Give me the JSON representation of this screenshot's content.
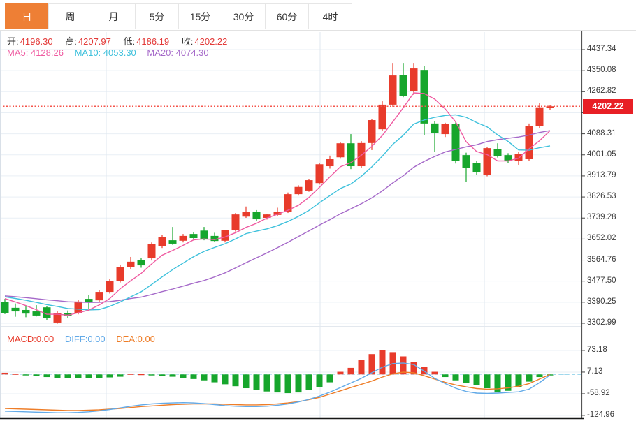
{
  "tabs": {
    "items": [
      {
        "label": "日",
        "selected": true
      },
      {
        "label": "周",
        "selected": false
      },
      {
        "label": "月",
        "selected": false
      },
      {
        "label": "5分",
        "selected": false
      },
      {
        "label": "15分",
        "selected": false
      },
      {
        "label": "30分",
        "selected": false
      },
      {
        "label": "60分",
        "selected": false
      },
      {
        "label": "4时",
        "selected": false
      }
    ]
  },
  "ohlc": {
    "open_label": "开:",
    "open": "4196.30",
    "high_label": "高:",
    "high": "4207.97",
    "low_label": "低:",
    "low": "4186.19",
    "close_label": "收:",
    "close": "4202.22"
  },
  "ma": {
    "ma5_label": "MA5:",
    "ma5": "4128.26",
    "ma10_label": "MA10:",
    "ma10": "4053.30",
    "ma20_label": "MA20:",
    "ma20": "4074.30"
  },
  "macd_info": {
    "macd_label": "MACD:",
    "macd": "0.00",
    "diff_label": "DIFF:",
    "diff": "0.00",
    "dea_label": "DEA:",
    "dea": "0.00"
  },
  "colors": {
    "up": "#e83b2b",
    "down": "#16a62c",
    "ma5": "#ef5ba1",
    "ma10": "#3ec1dc",
    "ma20": "#a569c9",
    "diff": "#62aae8",
    "dea": "#ee7d28",
    "current_line": "#f4554b",
    "badge": "#e81f25",
    "tab_active": "#ee7f35",
    "grid": "#e9eff5",
    "vgrid": "#dfe7ef",
    "value_red": "#e33a38"
  },
  "chart_data": {
    "type": "candlestick+macd",
    "title": "",
    "current_price": "4202.22",
    "price_axis": {
      "labels": [
        "4437.34",
        "4350.08",
        "4262.82",
        "4175.56",
        "4088.31",
        "4001.05",
        "3913.79",
        "3826.53",
        "3739.28",
        "3652.02",
        "3564.76",
        "3477.50",
        "3390.25",
        "3302.99"
      ],
      "max": 4437.34,
      "step": 87.26
    },
    "macd_axis": {
      "labels": [
        "73.18",
        "7.13",
        "-58.92",
        "-124.96"
      ],
      "max": 73.18,
      "step": 66.05
    },
    "ohlc_series": [
      [
        3390,
        3404,
        3341,
        3346
      ],
      [
        3367,
        3385,
        3330,
        3352
      ],
      [
        3358,
        3375,
        3328,
        3343
      ],
      [
        3352,
        3378,
        3331,
        3335
      ],
      [
        3369,
        3375,
        3316,
        3326
      ],
      [
        3306,
        3352,
        3301,
        3346
      ],
      [
        3346,
        3356,
        3325,
        3332
      ],
      [
        3346,
        3400,
        3340,
        3393
      ],
      [
        3404,
        3419,
        3361,
        3390
      ],
      [
        3398,
        3440,
        3390,
        3433
      ],
      [
        3433,
        3487,
        3426,
        3479
      ],
      [
        3479,
        3544,
        3472,
        3535
      ],
      [
        3535,
        3578,
        3528,
        3558
      ],
      [
        3566,
        3572,
        3533,
        3543
      ],
      [
        3572,
        3638,
        3563,
        3630
      ],
      [
        3624,
        3668,
        3615,
        3659
      ],
      [
        3647,
        3702,
        3628,
        3633
      ],
      [
        3645,
        3673,
        3638,
        3665
      ],
      [
        3673,
        3680,
        3648,
        3656
      ],
      [
        3687,
        3702,
        3647,
        3650
      ],
      [
        3665,
        3678,
        3640,
        3644
      ],
      [
        3645,
        3690,
        3638,
        3688
      ],
      [
        3688,
        3760,
        3683,
        3754
      ],
      [
        3745,
        3787,
        3740,
        3765
      ],
      [
        3766,
        3772,
        3726,
        3734
      ],
      [
        3740,
        3756,
        3733,
        3754
      ],
      [
        3752,
        3782,
        3746,
        3766
      ],
      [
        3766,
        3845,
        3760,
        3838
      ],
      [
        3838,
        3875,
        3832,
        3868
      ],
      [
        3853,
        3902,
        3848,
        3896
      ],
      [
        3884,
        3968,
        3878,
        3962
      ],
      [
        3954,
        3998,
        3944,
        3983
      ],
      [
        3991,
        4055,
        3985,
        4049
      ],
      [
        4049,
        4087,
        3942,
        3954
      ],
      [
        3954,
        4058,
        3948,
        4050
      ],
      [
        4050,
        4150,
        4021,
        4145
      ],
      [
        4107,
        4223,
        4100,
        4209
      ],
      [
        4209,
        4382,
        4200,
        4330
      ],
      [
        4333,
        4382,
        4240,
        4246
      ],
      [
        4266,
        4382,
        4250,
        4359
      ],
      [
        4353,
        4370,
        4084,
        4131
      ],
      [
        4131,
        4140,
        4012,
        4093
      ],
      [
        4087,
        4134,
        4075,
        4128
      ],
      [
        4128,
        4137,
        3965,
        3977
      ],
      [
        4000,
        4010,
        3890,
        3948
      ],
      [
        3968,
        3975,
        3918,
        3928
      ],
      [
        3919,
        4035,
        3912,
        4029
      ],
      [
        4026,
        4049,
        3990,
        3997
      ],
      [
        4000,
        4008,
        3966,
        3977
      ],
      [
        3977,
        4012,
        3960,
        4006
      ],
      [
        3983,
        4131,
        3976,
        4121
      ],
      [
        4121,
        4217,
        4113,
        4198
      ],
      [
        4196.3,
        4207.97,
        4186.19,
        4202.22
      ]
    ],
    "macd_hist": [
      5,
      2,
      -2,
      -5,
      -8,
      -10,
      -11,
      -12,
      -12,
      -11,
      -9,
      -7,
      2,
      1,
      -2,
      -4,
      -7,
      -10,
      -14,
      -18,
      -24,
      -30,
      -36,
      -42,
      -48,
      -52,
      -55,
      -57,
      -55,
      -48,
      -38,
      -24,
      8,
      20,
      45,
      62,
      75,
      68,
      55,
      38,
      22,
      8,
      -8,
      -18,
      -25,
      -32,
      -42,
      -55,
      -50,
      -38,
      -22,
      -8,
      -2
    ],
    "diff_line": [
      -112,
      -113,
      -114,
      -115,
      -116,
      -117,
      -117,
      -116,
      -114,
      -111,
      -107,
      -102,
      -97,
      -93,
      -90,
      -88,
      -87,
      -86,
      -87,
      -89,
      -92,
      -95,
      -97,
      -98,
      -98,
      -97,
      -94,
      -90,
      -84,
      -76,
      -66,
      -54,
      -40,
      -26,
      -12,
      5,
      22,
      33,
      35,
      30,
      10,
      -12,
      -28,
      -42,
      -52,
      -57,
      -58,
      -57,
      -55,
      -53,
      -45,
      -25,
      -2
    ],
    "dea_line": [
      -104,
      -105,
      -106,
      -107,
      -108,
      -109,
      -110,
      -110,
      -109,
      -108,
      -106,
      -104,
      -101,
      -98,
      -96,
      -94,
      -92,
      -91,
      -90,
      -90,
      -90,
      -91,
      -92,
      -93,
      -93,
      -92,
      -90,
      -87,
      -83,
      -77,
      -70,
      -60,
      -50,
      -40,
      -30,
      -20,
      -8,
      2,
      7,
      5,
      -4,
      -14,
      -24,
      -32,
      -38,
      -43,
      -45,
      -44,
      -41,
      -36,
      -28,
      -14,
      0
    ],
    "legend_position": "top-left",
    "grid": true
  }
}
